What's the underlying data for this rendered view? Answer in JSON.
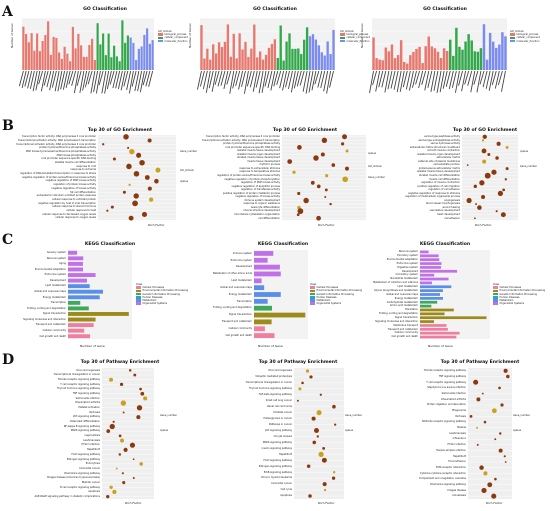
{
  "panel_letters": [
    "A",
    "B",
    "C",
    "D"
  ],
  "colors": {
    "bp": "#e8776e",
    "cc": "#31a84a",
    "mf": "#7b8cf0",
    "kegg": [
      "#f07f9f",
      "#c7a44a",
      "#3fa85a",
      "#2aa6c2",
      "#5b8ee6",
      "#c071e8",
      "#9c8b1a",
      "#c45a9e"
    ],
    "dot_low": "#1f6b2e",
    "dot_high": "#e3e34a"
  },
  "row_A": {
    "titles": [
      "GO Classification",
      "GO Classification",
      "GO Classification"
    ],
    "ylabel": "Number of Genes",
    "legend": [
      "GO_domain",
      "biological_process",
      "cellular_component",
      "molecular_function"
    ]
  },
  "row_B": {
    "titles": [
      "Top 30 of GO Enrichment",
      "Top 30 of GO Enrichment",
      "Top 30 of GO Enrichment"
    ],
    "xlabel": "Rich Factor",
    "legend_gene_number": "Gene_number",
    "legend_qvalue": "qvalue",
    "legend_domain": "GO_domain",
    "terms_1": [
      "transcription factor activity, RNA polymerase II core promoter",
      "transcriptional activator activity, RNA polymerase II transcription",
      "transcriptional activator activity, RNA polymerase II core promoter",
      "protein tyrosine/threonine phosphatase activity",
      "MAP kinase tyrosine/serine/threonine phosphatase activity",
      "MAP kinase phosphatase activity",
      "core promoter sequence-specific DNA binding",
      "skeletal muscle cell differentiation",
      "response to cold",
      "response to ischemia",
      "regulation of DNA-templated transcription in response to stress",
      "negative regulation of protein serine/threonine kinase activity",
      "negative regulation of MAP kinase activity",
      "regulation of protein kinase activity",
      "negative regulation of kinase activity",
      "fat cell differentiation",
      "endoplasmic reticulum unfolded protein response",
      "cellular response to unfolded protein",
      "negative regulation by host of viral transcription",
      "cellular response to steroid hormone",
      "cellular response to heat",
      "cellular response to decreased oxygen levels",
      "cellular response to oxygen levels"
    ],
    "terms_2": [
      "transcription factor activity, RNA polymerase II core promoter",
      "transcriptional activator activity, RNA polymerase II transcription",
      "protein tyrosine/threonine phosphatase activity",
      "core promoter sequence-specific DNA binding",
      "skeletal muscle tissue development",
      "skeletal muscle organ development",
      "striated muscle tissue development",
      "muscle tissue development",
      "rhythmic process",
      "response to extracellular stimulus",
      "response to temperature stimulus",
      "regulation of protein serine/threonine kinase activity",
      "negative regulation of protein phosphorylation",
      "regulation of MAP kinase activity",
      "negative regulation of apoptotic process",
      "regulation of transferase activity",
      "positive regulation of protein metabolic process",
      "negative regulation of kinase activity",
      "immune system development",
      "response to organic substance",
      "leukocyte differentiation",
      "muscle structure development",
      "microtubule cytoskeleton organization",
      "cell differentiation"
    ],
    "terms_3": [
      "serine-type peptidase activity",
      "serine-type endopeptidase activity",
      "serine hydrolase activity",
      "extracellular matrix structural constituent",
      "smooth muscle contraction",
      "skeletal muscle organ development",
      "extracellular matrix",
      "external side of plasma membrane",
      "cell-substrate junction",
      "proteinaceous extracellular matrix",
      "skeletal muscle tissue development",
      "striated muscle cell differentiation",
      "muscle cell differentiation",
      "regulation of muscle contraction",
      "positive regulation of cell migration",
      "regulation of cell adhesion",
      "negative regulation of response to stimulus",
      "regulation of multicellular organismal process",
      "angiogenesis",
      "blood vessel morphogenesis",
      "wound healing",
      "vasculature development",
      "heart development",
      "cell adhesion"
    ]
  },
  "row_C": {
    "titles": [
      "KEGG Classification",
      "KEGG Classification",
      "KEGG Classification"
    ],
    "xlabel": "Number of Gene",
    "legend_title": "Class",
    "legend": [
      "Cellular Processes",
      "Environmental Information Processing",
      "Genetic Information Processing",
      "Human Diseases",
      "Metabolism",
      "Organismal Systems"
    ],
    "cats_1": [
      "Sensory system",
      "Nervous system",
      "Aging",
      "Environmental adaptation",
      "Endocrine system",
      "Development",
      "Lipid metabolism",
      "Global and overview maps",
      "Energy metabolism",
      "Transcription",
      "Folding, sorting and degradation",
      "Signal transduction",
      "Signaling molecules and interaction",
      "Transport and catabolism",
      "Cellular community",
      "Cell growth and death"
    ],
    "cats_2": [
      "Immune system",
      "Endocrine system",
      "Development",
      "Metabolism of other amino acids",
      "Lipid metabolism",
      "Global and overview maps",
      "Energy metabolism",
      "Transcription",
      "Folding, sorting and degradation",
      "Signal transduction",
      "Transport and catabolism",
      "Cellular community",
      "Cell growth and death"
    ],
    "cats_3": [
      "Nervous system",
      "Excretory system",
      "Environmental adaptation",
      "Endocrine system",
      "Digestive system",
      "Development",
      "Circulatory system",
      "Nucleotide metabolism",
      "Metabolism of cofactors and vitamins",
      "Lipid metabolism",
      "Glycan biosynthesis and metabolism",
      "Global and overview maps",
      "Energy metabolism",
      "Carbohydrate metabolism",
      "Amino acid metabolism",
      "Translation",
      "Folding, sorting and degradation",
      "Signal transduction",
      "Signaling molecules and interaction",
      "Membrane transport",
      "Transport and catabolism",
      "Cellular community",
      "Cell growth and death"
    ]
  },
  "row_D": {
    "titles": [
      "Top 30 of Pathway Enrichment",
      "Top 30 of Pathway Enrichment",
      "Top 30 of Pathway Enrichment"
    ],
    "xlabel": "Rich Factor",
    "legend_gene_number": "Gene_number",
    "legend_qvalue": "qvalue",
    "terms_1": [
      "Viral carcinogenesis",
      "Transcriptional misregulation in cancer",
      "Toll-like receptor signaling pathway",
      "T cell receptor signaling pathway",
      "Thyroid hormone signaling pathway",
      "TNF signaling pathway",
      "Salmonella infection",
      "Rheumatoid arthritis",
      "Platelet activation",
      "Pertussis",
      "p53 signaling pathway",
      "Osteoclast differentiation",
      "NF-kappa B signaling pathway",
      "MAPK signaling pathway",
      "Legionellosis",
      "Leishmaniasis",
      "HTLV-I infection",
      "Hepatitis B",
      "FoxO signaling pathway",
      "Estrogen signaling pathway",
      "Endocytosis",
      "Colorectal cancer",
      "Chemokine signaling pathway",
      "Chagas disease (American trypanosomiasis)",
      "Bladder cancer",
      "B cell receptor signaling pathway",
      "Apoptosis",
      "AGE-RAGE signaling pathway in diabetic complications"
    ],
    "terms_2": [
      "Viral carcinogenesis",
      "Ubiquitin mediated proteolysis",
      "Transcriptional misregulation in cancer",
      "Thyroid hormone signaling pathway",
      "TGF-beta signaling pathway",
      "Small cell lung cancer",
      "Renal cell carcinoma",
      "Prostate cancer",
      "Proteoglycans in cancer",
      "Pathways in cancer",
      "p53 signaling pathway",
      "Oocyte meiosis",
      "MAPK signaling pathway",
      "Insulin signaling pathway",
      "Hepatitis B",
      "FoxO signaling pathway",
      "Estrogen signaling pathway",
      "ErbB signaling pathway",
      "Chronic myeloid leukemia",
      "Colorectal cancer",
      "Cell cycle",
      "Apoptosis"
    ],
    "terms_3": [
      "Toll-like receptor signaling pathway",
      "TNF signaling pathway",
      "T cell receptor signaling pathway",
      "Staphylococcus aureus infection",
      "Salmonella infection",
      "Rheumatoid arthritis",
      "Protein digestion and absorption",
      "Phagosome",
      "Pertussis",
      "NOD-like receptor signaling pathway",
      "Malaria",
      "Leishmaniasis",
      "Influenza A",
      "HTLV-I infection",
      "Herpes simplex infection",
      "Hepatitis B",
      "Focal adhesion",
      "ECM-receptor interaction",
      "Cytokine-cytokine receptor interaction",
      "Complement and coagulation cascades",
      "Chemokine signaling pathway",
      "Chagas disease",
      "Amoebiasis"
    ]
  }
}
